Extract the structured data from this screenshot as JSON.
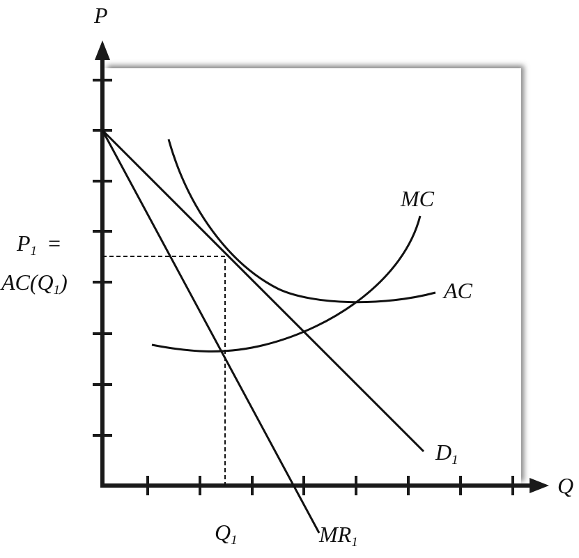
{
  "axes": {
    "y_label": "P",
    "x_label": "Q"
  },
  "curves": [
    {
      "label": "MC"
    },
    {
      "label": "AC"
    },
    {
      "label": "D",
      "subscript": "1"
    },
    {
      "label": "MR",
      "subscript": "1"
    }
  ],
  "markers": {
    "quantity": {
      "label": "Q",
      "subscript": "1"
    },
    "price": {
      "label": "P",
      "subscript": "1",
      "suffix": "=",
      "line2_prefix": "AC(Q",
      "line2_subscript": "1",
      "line2_suffix": ")"
    }
  }
}
